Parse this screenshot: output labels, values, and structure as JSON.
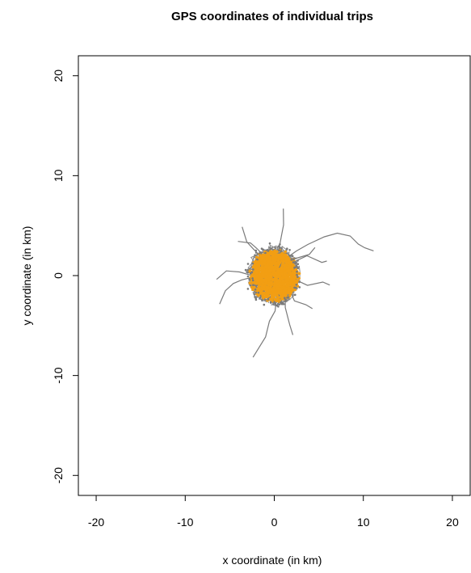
{
  "chart_data": {
    "type": "scatter",
    "title": "GPS coordinates of individual trips",
    "xlabel": "x coordinate (in km)",
    "ylabel": "y coordinate (in km)",
    "xlim": [
      -22,
      22
    ],
    "ylim": [
      -22,
      22
    ],
    "x_ticks": [
      -20,
      -10,
      0,
      10,
      20
    ],
    "y_ticks": [
      -20,
      -10,
      0,
      10,
      20
    ],
    "x_tick_labels": [
      "-20",
      "-10",
      "0",
      "10",
      "20"
    ],
    "y_tick_labels": [
      "-20",
      "-10",
      "0",
      "10",
      "20"
    ],
    "grid": false,
    "colors": {
      "trip_path": "#7a7a7a",
      "gps_point": "#f29e13"
    },
    "trip_paths": [
      [
        [
          0.4,
          0.6
        ],
        [
          1.5,
          1.6
        ],
        [
          2.6,
          2.4
        ],
        [
          4.0,
          3.0
        ],
        [
          5.6,
          3.7
        ],
        [
          7.0,
          4.4
        ],
        [
          8.4,
          4.0
        ],
        [
          9.3,
          3.4
        ],
        [
          10.2,
          2.9
        ],
        [
          11.0,
          2.7
        ]
      ],
      [
        [
          0.2,
          0.4
        ],
        [
          0.7,
          2.2
        ],
        [
          1.0,
          3.8
        ],
        [
          1.0,
          5.2
        ],
        [
          1.1,
          6.6
        ]
      ],
      [
        [
          -0.1,
          0.5
        ],
        [
          -1.2,
          1.6
        ],
        [
          -2.2,
          2.6
        ],
        [
          -3.2,
          3.5
        ],
        [
          -3.5,
          4.8
        ]
      ],
      [
        [
          0.3,
          0.3
        ],
        [
          2.0,
          1.3
        ],
        [
          3.6,
          1.9
        ],
        [
          5.2,
          1.4
        ],
        [
          6.1,
          1.7
        ]
      ],
      [
        [
          -0.2,
          0.1
        ],
        [
          -1.8,
          -0.2
        ],
        [
          -3.5,
          -0.5
        ],
        [
          -4.8,
          -0.9
        ],
        [
          -5.6,
          -1.6
        ],
        [
          -6.0,
          -2.6
        ]
      ],
      [
        [
          -0.3,
          0.0
        ],
        [
          -2.2,
          -0.1
        ],
        [
          -4.0,
          0.2
        ],
        [
          -5.5,
          0.4
        ],
        [
          -6.6,
          -0.3
        ]
      ],
      [
        [
          0.1,
          -0.3
        ],
        [
          0.5,
          -1.8
        ],
        [
          0.0,
          -3.4
        ],
        [
          -0.5,
          -4.8
        ],
        [
          -1.0,
          -6.2
        ],
        [
          -1.8,
          -7.4
        ],
        [
          -2.6,
          -8.0
        ]
      ],
      [
        [
          0.2,
          -0.2
        ],
        [
          1.0,
          -1.5
        ],
        [
          1.4,
          -3.2
        ],
        [
          1.8,
          -4.9
        ],
        [
          2.2,
          -5.9
        ]
      ],
      [
        [
          0.5,
          0.0
        ],
        [
          2.0,
          -0.5
        ],
        [
          3.6,
          -0.8
        ],
        [
          5.2,
          -0.5
        ],
        [
          6.0,
          -0.8
        ]
      ],
      [
        [
          -0.2,
          0.2
        ],
        [
          -0.8,
          1.8
        ],
        [
          -1.8,
          2.8
        ],
        [
          -2.8,
          3.3
        ],
        [
          -4.0,
          3.6
        ]
      ],
      [
        [
          0.3,
          0.4
        ],
        [
          1.3,
          1.4
        ],
        [
          2.6,
          2.0
        ],
        [
          3.7,
          2.2
        ],
        [
          4.5,
          2.8
        ]
      ],
      [
        [
          0.4,
          -0.2
        ],
        [
          1.6,
          -1.6
        ],
        [
          2.2,
          -2.6
        ],
        [
          3.3,
          -3.0
        ],
        [
          4.4,
          -3.3
        ]
      ]
    ]
  }
}
